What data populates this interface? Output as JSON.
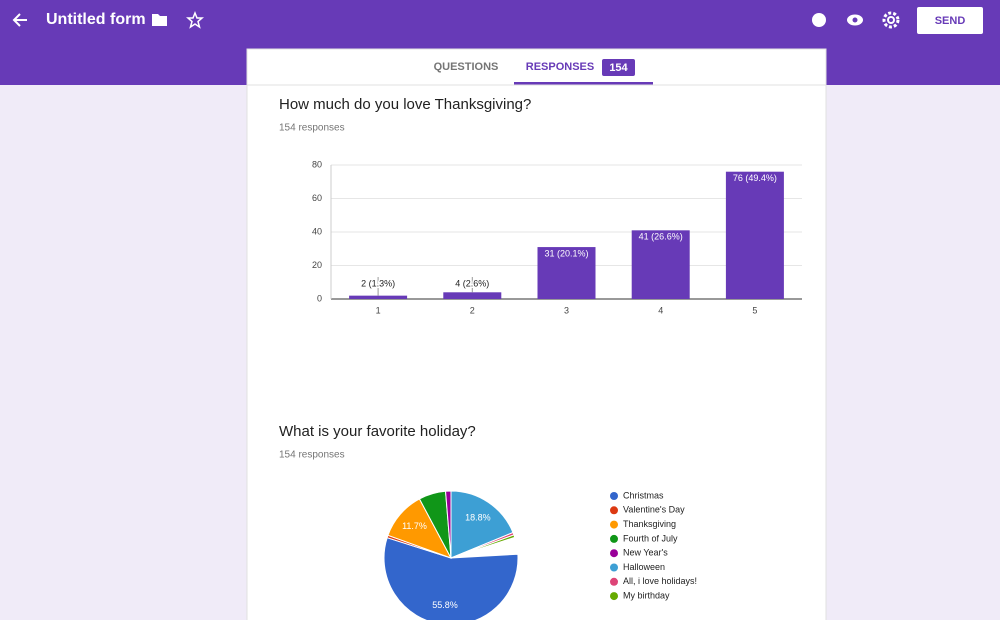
{
  "header": {
    "title": "Untitled form",
    "send": "SEND"
  },
  "tabs": {
    "questions": "QUESTIONS",
    "responses": "RESPONSES",
    "response_count": 154
  },
  "questions": [
    {
      "title": "How much do you love Thanksgiving?",
      "subtitle": "154 responses",
      "chart_data": {
        "type": "bar",
        "categories": [
          "1",
          "2",
          "3",
          "4",
          "5"
        ],
        "values": [
          2,
          4,
          31,
          41,
          76
        ],
        "value_labels": [
          "2 (1.3%)",
          "4 (2.6%)",
          "31 (20.1%)",
          "41 (26.6%)",
          "76 (49.4%)"
        ],
        "color": "#673ab7",
        "ylim": [
          0,
          80
        ],
        "yticks": [
          0,
          20,
          40,
          60,
          80
        ],
        "grid": true
      }
    },
    {
      "title": "What is your favorite holiday?",
      "subtitle": "154 responses",
      "chart_data": {
        "type": "pie",
        "categories": [
          "Christmas",
          "Valentine's Day",
          "Thanksgiving",
          "Fourth of July",
          "New Year's",
          "Halloween",
          "All, i love holidays!",
          "My birthday"
        ],
        "values": [
          55.8,
          0.6,
          11.7,
          6.5,
          1.3,
          18.8,
          0.6,
          0.6
        ],
        "value_labels": [
          "55.8%",
          null,
          "11.7%",
          null,
          null,
          "18.8%",
          null,
          null
        ],
        "colors": [
          "#3366cc",
          "#dc3912",
          "#ff9900",
          "#109618",
          "#990099",
          "#3d9fd4",
          "#dd4477",
          "#66aa00"
        ],
        "legend": "right"
      }
    }
  ]
}
